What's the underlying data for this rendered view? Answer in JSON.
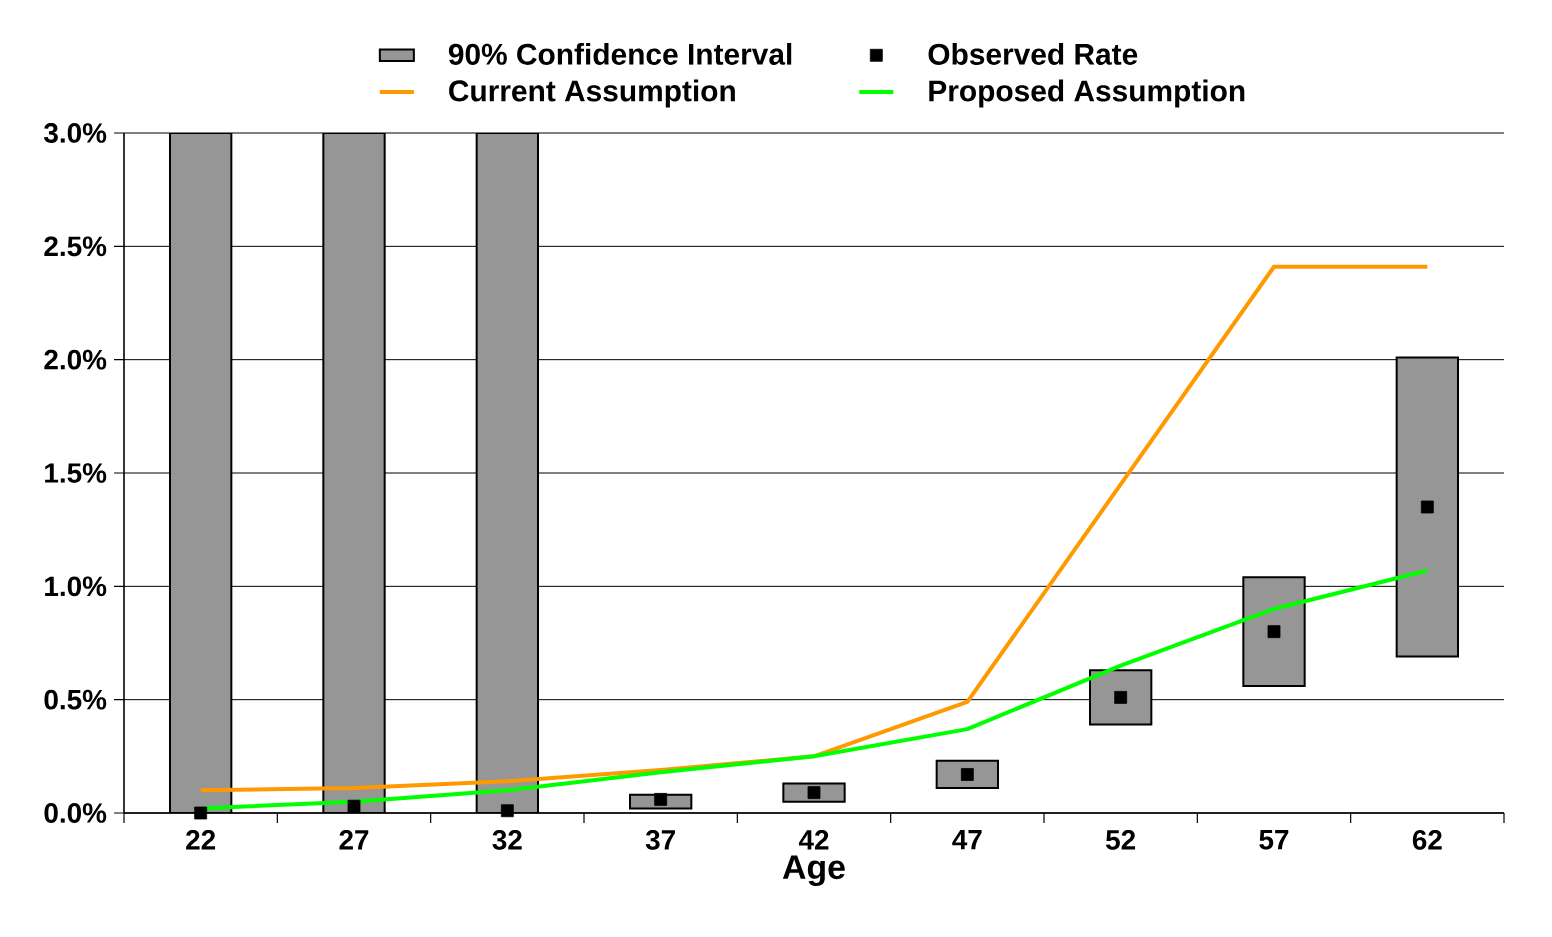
{
  "chart_data": {
    "type": "bar",
    "xlabel": "Age",
    "categories": [
      "22",
      "27",
      "32",
      "37",
      "42",
      "47",
      "52",
      "57",
      "62"
    ],
    "ylim": [
      0,
      3.0
    ],
    "yticks": [
      {
        "value": 0,
        "label": "0.0%"
      },
      {
        "value": 0.5,
        "label": "0.5%"
      },
      {
        "value": 1.0,
        "label": "1.0%"
      },
      {
        "value": 1.5,
        "label": "1.5%"
      },
      {
        "value": 2.0,
        "label": "2.0%"
      },
      {
        "value": 2.5,
        "label": "2.5%"
      },
      {
        "value": 3.0,
        "label": "3.0%"
      }
    ],
    "grid": "y",
    "legend": "top",
    "series": [
      {
        "name": "90% Confidence Interval",
        "color": "#969696",
        "base": [
          0,
          0,
          0,
          0.02,
          0.05,
          0.11,
          0.39,
          0.56,
          0.69
        ],
        "values": [
          3.0,
          3.0,
          3.0,
          0.06,
          0.08,
          0.12,
          0.24,
          0.48,
          1.32
        ]
      },
      {
        "type": "scatter",
        "name": "Observed Rate",
        "color": "#000000",
        "marker": "square",
        "values": [
          0.0,
          0.03,
          0.01,
          0.06,
          0.09,
          0.17,
          0.51,
          0.8,
          1.35
        ]
      },
      {
        "type": "line",
        "name": "Current Assumption",
        "color": "#ff9900",
        "values": [
          0.1,
          0.11,
          0.14,
          0.19,
          0.25,
          0.49,
          1.45,
          2.41,
          2.41
        ]
      },
      {
        "type": "line",
        "name": "Proposed Assumption",
        "color": "#00ff00",
        "values": [
          0.02,
          0.05,
          0.1,
          0.18,
          0.25,
          0.37,
          0.65,
          0.9,
          1.07
        ]
      }
    ]
  }
}
